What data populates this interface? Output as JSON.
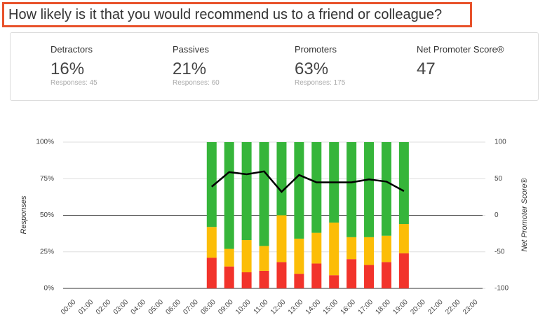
{
  "question": "How likely is it that you would recommend us to a friend or colleague?",
  "summary": [
    {
      "label": "Detractors",
      "value": "16%",
      "responses": "Responses: 45"
    },
    {
      "label": "Passives",
      "value": "21%",
      "responses": "Responses: 60"
    },
    {
      "label": "Promoters",
      "value": "63%",
      "responses": "Responses: 175"
    },
    {
      "label": "Net Promoter Score®",
      "value": "47"
    }
  ],
  "chart_data": {
    "type": "bar",
    "stacked": true,
    "y_label": "Responses",
    "y2_label": "Net Promoter Score®",
    "categories": [
      "00:00",
      "01:00",
      "02:00",
      "03:00",
      "04:00",
      "05:00",
      "06:00",
      "07:00",
      "08:00",
      "09:00",
      "10:00",
      "11:00",
      "12:00",
      "13:00",
      "14:00",
      "15:00",
      "16:00",
      "17:00",
      "18:00",
      "19:00",
      "20:00",
      "21:00",
      "22:00",
      "23:00"
    ],
    "series": [
      {
        "color": "#f2332b",
        "values": [
          null,
          null,
          null,
          null,
          null,
          null,
          null,
          null,
          21,
          15,
          11,
          12,
          18,
          10,
          17,
          9,
          20,
          16,
          18,
          24,
          null,
          null,
          null,
          null
        ]
      },
      {
        "color": "#fcbd07",
        "values": [
          null,
          null,
          null,
          null,
          null,
          null,
          null,
          null,
          21,
          12,
          22,
          17,
          32,
          24,
          21,
          36,
          15,
          19,
          18,
          20,
          null,
          null,
          null,
          null
        ]
      },
      {
        "color": "#36b53a",
        "values": [
          null,
          null,
          null,
          null,
          null,
          null,
          null,
          null,
          58,
          73,
          67,
          71,
          50,
          66,
          62,
          55,
          65,
          65,
          64,
          56,
          null,
          null,
          null,
          null
        ]
      },
      {
        "type": "line",
        "axis": "y2",
        "color": "#000000",
        "values": [
          null,
          null,
          null,
          null,
          null,
          null,
          null,
          null,
          39,
          59,
          56,
          60,
          32,
          55,
          45,
          45,
          45,
          49,
          46,
          33,
          null,
          null,
          null,
          null
        ]
      }
    ],
    "ylim": [
      0,
      100
    ],
    "yticks": [
      {
        "value": 0,
        "label": "0%"
      },
      {
        "value": 25,
        "label": "25%"
      },
      {
        "value": 50,
        "label": "50%"
      },
      {
        "value": 75,
        "label": "75%"
      },
      {
        "value": 100,
        "label": "100%"
      }
    ],
    "y2lim": [
      -100,
      100
    ],
    "y2ticks": [
      -100,
      -50,
      0,
      50,
      100
    ],
    "grid": true
  }
}
